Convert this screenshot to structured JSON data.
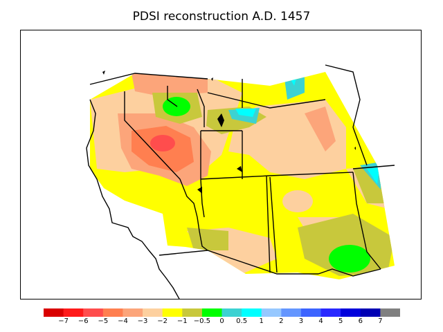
{
  "title": "PDSI reconstruction A.D. 1457",
  "colorbar": {
    "labels": [
      "−7",
      "−6",
      "−5",
      "−4",
      "−3",
      "−2",
      "−1",
      "−0.5",
      "0",
      "0.5",
      "1",
      "2",
      "3",
      "4",
      "5",
      "6",
      "7"
    ],
    "colors": [
      "#d90000",
      "#ff1a1a",
      "#ff4d4d",
      "#ff7f50",
      "#fca57a",
      "#fdd09f",
      "#ffff00",
      "#c8c83c",
      "#00ff00",
      "#3cd2d2",
      "#00ffff",
      "#96c8ff",
      "#6496ff",
      "#3c64ff",
      "#2828ff",
      "#0000dc",
      "#0000b4",
      "#808080"
    ]
  },
  "map": {
    "field_colors": {
      "base": "#ffff00",
      "olive": "#c8c83c",
      "green": "#00ff00",
      "peach": "#fdd09f",
      "salmon": "#fca57a",
      "orange": "#ff7f50",
      "red": "#ff4d4d",
      "teal": "#3cd2d2",
      "cyan": "#00ffff"
    }
  }
}
